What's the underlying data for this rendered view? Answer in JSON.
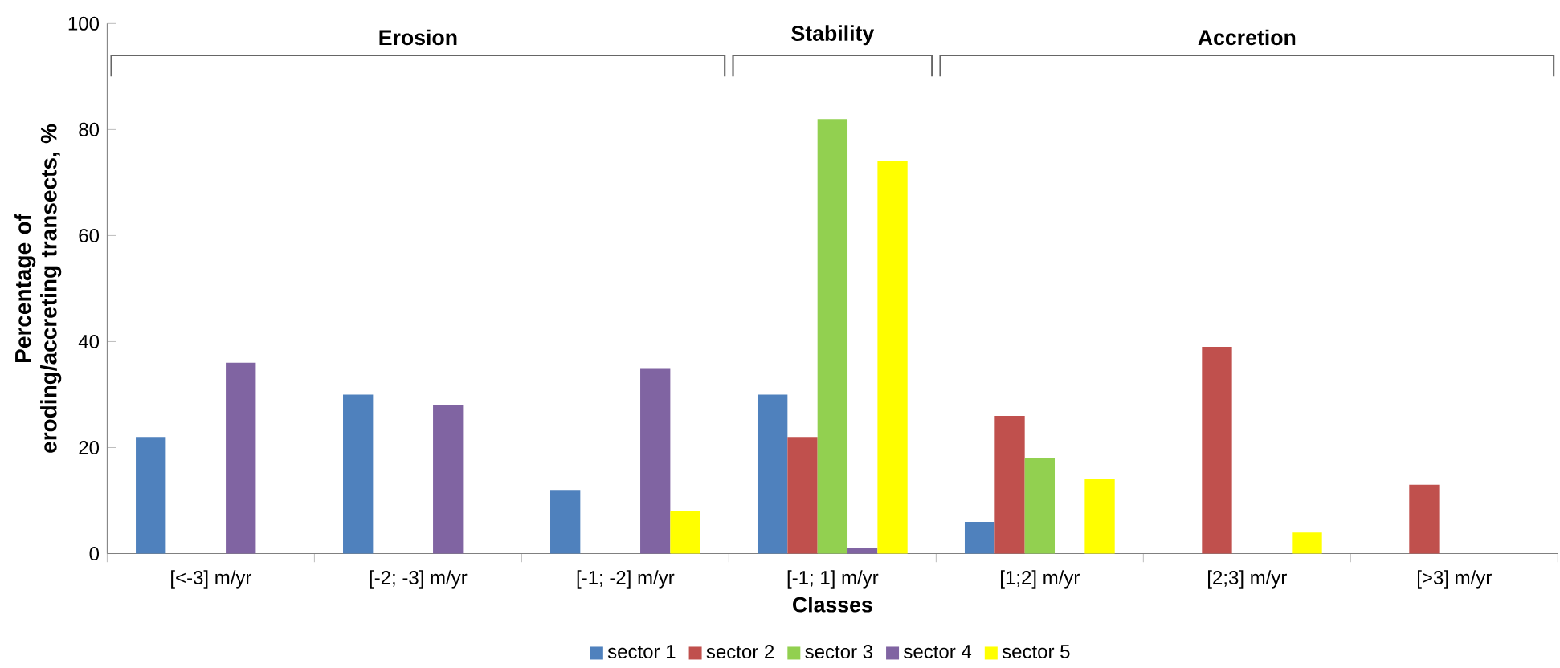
{
  "chart_data": {
    "type": "bar",
    "xlabel": "Classes",
    "ylabel": "Percentage of eroding/accreting transects, %",
    "categories": [
      "[<-3] m/yr",
      "[-2; -3] m/yr",
      "[-1; -2] m/yr",
      "[-1; 1] m/yr",
      "[1;2] m/yr",
      "[2;3] m/yr",
      "[>3] m/yr"
    ],
    "series": [
      {
        "name": "sector 1",
        "color": "#4f81bd",
        "values": [
          22,
          30,
          12,
          30,
          6,
          null,
          null
        ]
      },
      {
        "name": "sector 2",
        "color": "#c0504d",
        "values": [
          null,
          null,
          null,
          22,
          26,
          39,
          13
        ]
      },
      {
        "name": "sector 3",
        "color": "#92d050",
        "values": [
          null,
          null,
          null,
          82,
          18,
          null,
          null
        ]
      },
      {
        "name": "sector 4",
        "color": "#8064a2",
        "values": [
          36,
          28,
          35,
          1,
          null,
          null,
          null
        ]
      },
      {
        "name": "sector 5",
        "color": "#ffff00",
        "values": [
          null,
          null,
          8,
          74,
          14,
          4,
          null
        ]
      }
    ],
    "ylim": [
      0,
      100
    ],
    "yticks": [
      0,
      20,
      40,
      60,
      80,
      100
    ],
    "grid": false,
    "legend": "bottom",
    "annotations": [
      "Erosion",
      "Stability",
      "Accretion"
    ]
  }
}
